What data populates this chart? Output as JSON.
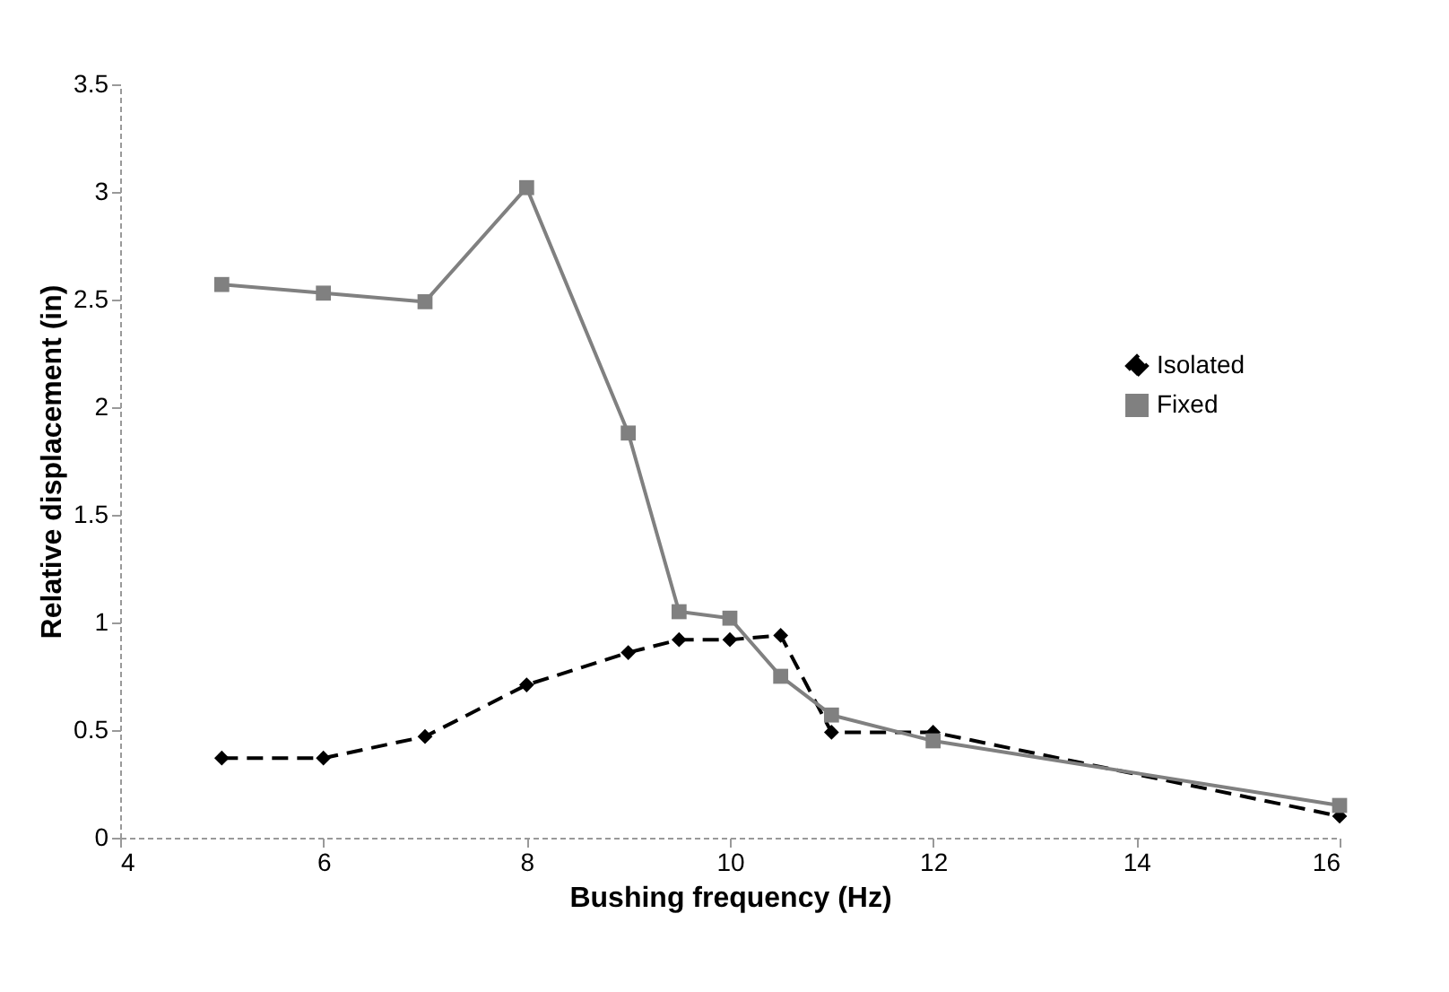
{
  "chart_data": {
    "type": "line",
    "xlabel": "Bushing frequency (Hz)",
    "ylabel": "Relative displacement (in)",
    "x": [
      5,
      6,
      7,
      8,
      9,
      9.5,
      10,
      10.5,
      11,
      12,
      16
    ],
    "series": [
      {
        "name": "Isolated",
        "color": "#000000",
        "marker": "diamond",
        "line_style": "dashed",
        "values": [
          0.37,
          0.37,
          0.47,
          0.71,
          0.86,
          0.92,
          0.92,
          0.94,
          0.49,
          0.49,
          0.1
        ]
      },
      {
        "name": "Fixed",
        "color": "#808080",
        "marker": "square",
        "line_style": "solid",
        "values": [
          2.57,
          2.53,
          2.49,
          3.02,
          1.88,
          1.05,
          1.02,
          0.75,
          0.57,
          0.45,
          0.15
        ]
      }
    ],
    "xlim": [
      4,
      16
    ],
    "xticks": [
      4,
      6,
      8,
      10,
      12,
      14,
      16
    ],
    "ylim": [
      0,
      3.5
    ],
    "yticks": [
      0,
      0.5,
      1,
      1.5,
      2,
      2.5,
      3,
      3.5
    ],
    "grid": false,
    "legend": "right"
  }
}
